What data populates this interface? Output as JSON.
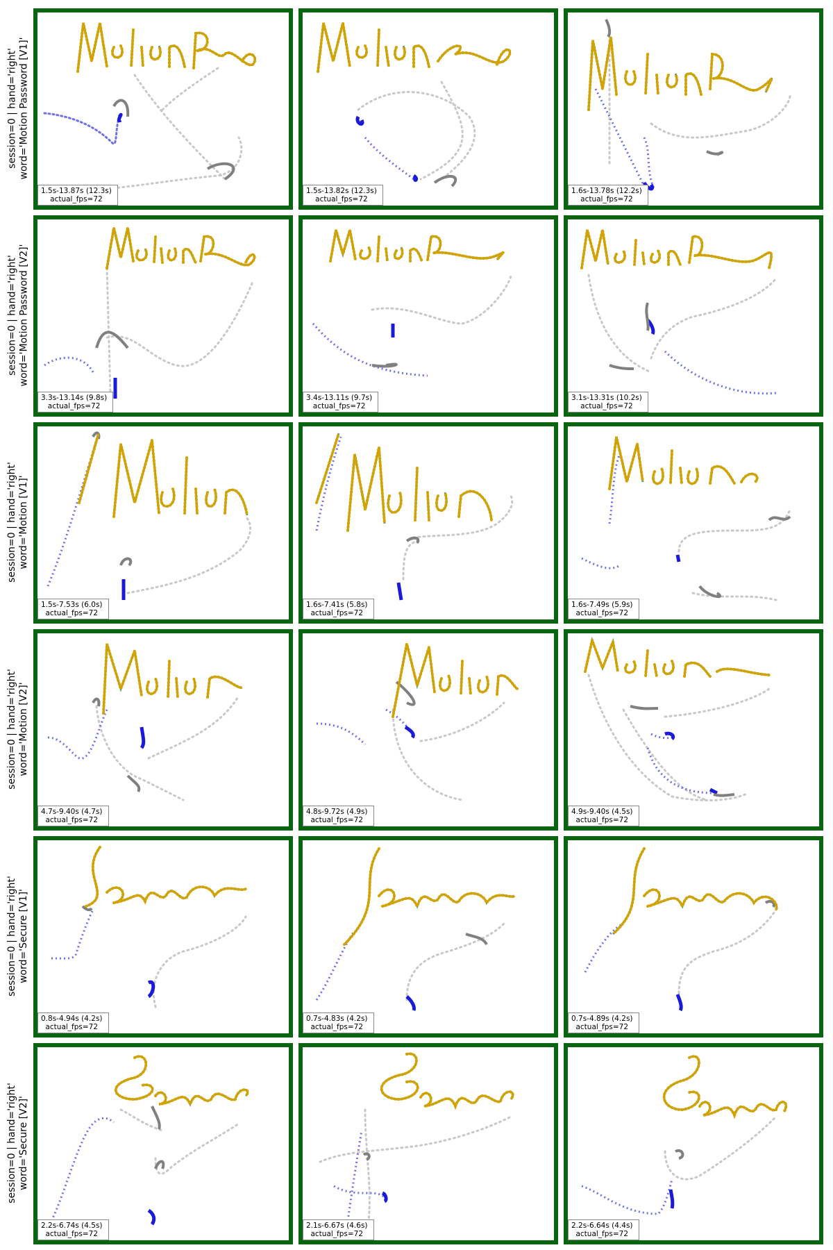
{
  "rows": [
    {
      "label_line1": "session=0 | hand='right'",
      "label_line2": "word='Motion Password [V1]'",
      "panels": [
        {
          "time": "1.5s-13.87s (12.3s)",
          "fps": "actual_fps=72"
        },
        {
          "time": "1.5s-13.82s (12.3s)",
          "fps": "actual_fps=72"
        },
        {
          "time": "1.6s-13.78s (12.2s)",
          "fps": "actual_fps=72"
        }
      ]
    },
    {
      "label_line1": "session=0 | hand='right'",
      "label_line2": "word='Motion Password [V2]'",
      "panels": [
        {
          "time": "3.3s-13.14s (9.8s)",
          "fps": "actual_fps=72"
        },
        {
          "time": "3.4s-13.11s (9.7s)",
          "fps": "actual_fps=72"
        },
        {
          "time": "3.1s-13.31s (10.2s)",
          "fps": "actual_fps=72"
        }
      ]
    },
    {
      "label_line1": "session=0 | hand='right'",
      "label_line2": "word='Motion [V1]'",
      "panels": [
        {
          "time": "1.5s-7.53s (6.0s)",
          "fps": "actual_fps=72"
        },
        {
          "time": "1.6s-7.41s (5.8s)",
          "fps": "actual_fps=72"
        },
        {
          "time": "1.6s-7.49s (5.9s)",
          "fps": "actual_fps=72"
        }
      ]
    },
    {
      "label_line1": "session=0 | hand='right'",
      "label_line2": "word='Motion [V2]'",
      "panels": [
        {
          "time": "4.7s-9.40s (4.7s)",
          "fps": "actual_fps=72"
        },
        {
          "time": "4.8s-9.72s (4.9s)",
          "fps": "actual_fps=72"
        },
        {
          "time": "4.9s-9.40s (4.5s)",
          "fps": "actual_fps=72"
        }
      ]
    },
    {
      "label_line1": "session=0 | hand='right'",
      "label_line2": "word='Secure [V1]'",
      "panels": [
        {
          "time": "0.8s-4.94s (4.2s)",
          "fps": "actual_fps=72"
        },
        {
          "time": "0.7s-4.83s (4.2s)",
          "fps": "actual_fps=72"
        },
        {
          "time": "0.7s-4.89s (4.2s)",
          "fps": "actual_fps=72"
        }
      ]
    },
    {
      "label_line1": "session=0 | hand='right'",
      "label_line2": "word='Secure [V2]'",
      "panels": [
        {
          "time": "2.2s-6.74s (4.5s)",
          "fps": "actual_fps=72"
        },
        {
          "time": "2.1s-6.67s (4.6s)",
          "fps": "actual_fps=72"
        },
        {
          "time": "2.2s-6.64s (4.4s)",
          "fps": "actual_fps=72"
        }
      ]
    }
  ],
  "colors": {
    "frame": "#0b6410",
    "ink_stroke": "#6a9e6e",
    "ink_dots": "#d4a300",
    "idle_path": "#bdbdbd",
    "start_path": "#5a5ae6",
    "start_end": "#1010d8",
    "pause_mark": "#7a7a7a"
  }
}
